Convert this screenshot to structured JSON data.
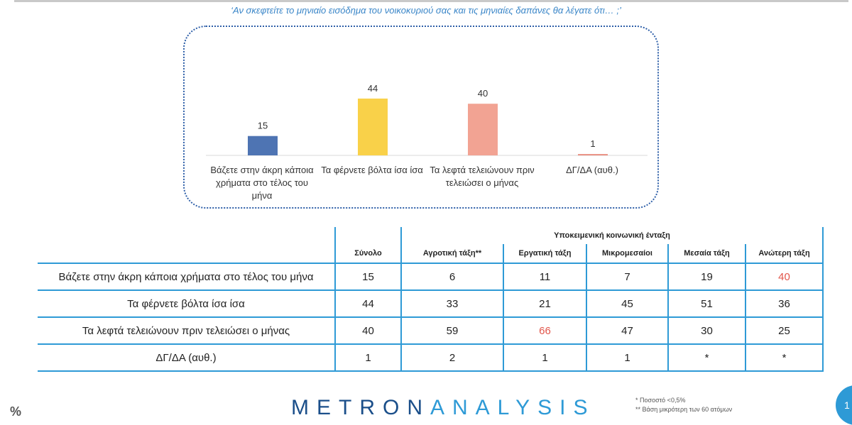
{
  "question": "‘Αν σκεφτείτε το μηνιαίο εισόδημα του νοικοκυριού σας και τις μηνιαίες δαπάνες θα λέγατε ότι… ;’",
  "chart_data": {
    "type": "bar",
    "categories": [
      "Βάζετε στην άκρη κάποια χρήματα στο τέλος του μήνα",
      "Τα φέρνετε βόλτα ίσα ίσα",
      "Τα λεφτά τελειώνουν πριν τελειώσει ο μήνας",
      "ΔΓ/ΔΑ (αυθ.)"
    ],
    "values": [
      15,
      44,
      40,
      1
    ],
    "colors": [
      "#4e74b3",
      "#f9d149",
      "#f2a393",
      "#e8897a"
    ],
    "ylim": [
      0,
      50
    ]
  },
  "table": {
    "group_header": "Υποκειμενική κοινωνική ένταξη",
    "columns": [
      "Σύνολο",
      "Αγροτική τάξη**",
      "Εργατική τάξη",
      "Μικρομεσαίοι",
      "Μεσαία τάξη",
      "Ανώτερη τάξη"
    ],
    "rows": [
      {
        "label": "Βάζετε στην άκρη κάποια χρήματα στο τέλος του μήνα",
        "values": [
          "15",
          "6",
          "11",
          "7",
          "19",
          "40"
        ]
      },
      {
        "label": "Τα φέρνετε βόλτα ίσα ίσα",
        "values": [
          "44",
          "33",
          "21",
          "45",
          "51",
          "36"
        ]
      },
      {
        "label": "Τα λεφτά τελειώνουν πριν τελειώσει ο μήνας",
        "values": [
          "40",
          "59",
          "66",
          "47",
          "30",
          "25"
        ]
      },
      {
        "label": "ΔΓ/ΔΑ (αυθ.)",
        "values": [
          "1",
          "2",
          "1",
          "1",
          "*",
          "*"
        ]
      }
    ],
    "highlight_color": "#e2564b"
  },
  "footer": {
    "percent_sign": "%",
    "logo_part1": "METRON",
    "logo_part2": "ANALYSIS",
    "note1": "*  Ποσοστό <0,5%",
    "note2": "**  Βάση μικρότερη των 60 ατόμων",
    "page_number": "1"
  }
}
